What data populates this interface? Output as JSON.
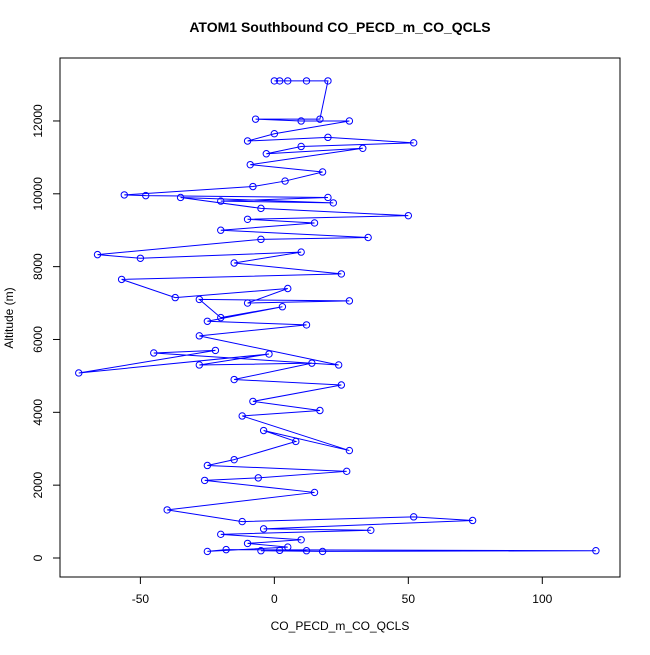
{
  "chart_data": {
    "type": "line",
    "title": "ATOM1 Southbound CO_PECD_m_CO_QCLS",
    "x_label": "CO_PECD_m_CO_QCLS",
    "y_label": "Altitude (m)",
    "series": [
      {
        "color": "#0000ff",
        "x": [
          0,
          2,
          5,
          12,
          20,
          17,
          -7,
          10,
          28,
          0,
          -10,
          20,
          52,
          10,
          -3,
          33,
          -9,
          18,
          4,
          -8,
          -56,
          -48,
          20,
          -20,
          22,
          -35,
          -5,
          50,
          -10,
          15,
          -20,
          35,
          -5,
          -66,
          -50,
          10,
          -15,
          25,
          -57,
          -37,
          5,
          -10,
          28,
          -28,
          -20,
          3,
          -25,
          12,
          -28,
          24,
          -45,
          -22,
          -73,
          -2,
          -28,
          14,
          -15,
          25,
          -8,
          17,
          -12,
          28,
          -4,
          8,
          -15,
          -25,
          27,
          -6,
          -26,
          15,
          -40,
          -12,
          52,
          74,
          -4,
          36,
          -20,
          10,
          -10,
          5,
          -25,
          -18,
          120,
          18,
          -5,
          2,
          12
        ],
        "values": [
          13100,
          13100,
          13100,
          13100,
          13100,
          12050,
          12050,
          12000,
          12000,
          11650,
          11450,
          11550,
          11400,
          11300,
          11100,
          11250,
          10800,
          10600,
          10350,
          10200,
          9970,
          9950,
          9900,
          9800,
          9750,
          9900,
          9600,
          9400,
          9300,
          9200,
          9000,
          8800,
          8750,
          8330,
          8230,
          8400,
          8100,
          7800,
          7650,
          7150,
          7400,
          7000,
          7060,
          7100,
          6600,
          6900,
          6500,
          6400,
          6100,
          5300,
          5630,
          5700,
          5080,
          5600,
          5300,
          5350,
          4900,
          4750,
          4300,
          4050,
          3900,
          2950,
          3500,
          3200,
          2700,
          2540,
          2380,
          2200,
          2130,
          1800,
          1320,
          1000,
          1130,
          1030,
          800,
          760,
          650,
          500,
          400,
          300,
          180,
          230,
          200,
          180,
          200,
          210,
          200
        ]
      }
    ],
    "xlim": [
      -80,
      129
    ],
    "ylim": [
      -522,
      13729
    ],
    "xticks": [
      -50,
      0,
      50,
      100
    ],
    "yticks": [
      0,
      2000,
      4000,
      6000,
      8000,
      10000,
      12000
    ],
    "grid": false
  }
}
